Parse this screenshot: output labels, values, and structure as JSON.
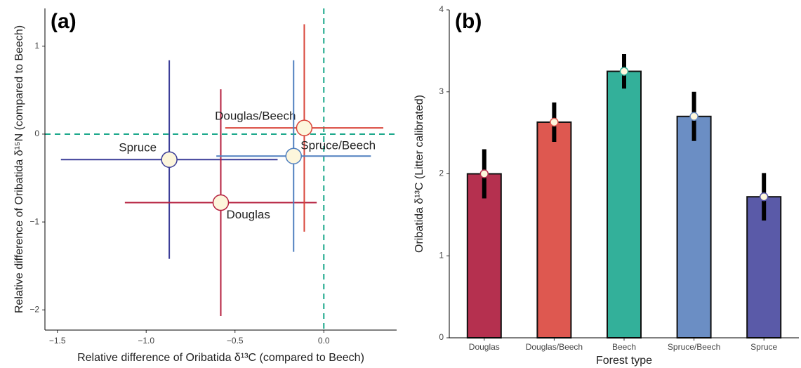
{
  "chart_data": [
    {
      "type": "scatter",
      "title": "(a)",
      "x_label": "Relative difference of Oribatida δ¹³C (compared to Beech)",
      "y_label": "Relative difference of Oribatida δ¹⁵N (compared to Beech)",
      "xlim": [
        -1.57,
        0.41
      ],
      "ylim": [
        -2.23,
        1.43
      ],
      "xticks": [
        {
          "value": -1.5,
          "label": "−1.5"
        },
        {
          "value": -1.0,
          "label": "−1.0"
        },
        {
          "value": -0.5,
          "label": "−0.5"
        },
        {
          "value": 0.0,
          "label": "0.0"
        }
      ],
      "yticks": [
        {
          "value": -2,
          "label": "−2"
        },
        {
          "value": -1,
          "label": "−1"
        },
        0,
        1
      ],
      "reference_lines": {
        "x": 0,
        "y": 0,
        "color": "#1aa88a"
      },
      "marker_fill": "#fdf6dc",
      "series": [
        {
          "name": "Spruce",
          "color": "#3b3d98",
          "x": [
            -0.87
          ],
          "values": [
            -0.29
          ],
          "xerr": [
            0.61
          ],
          "yerr": [
            1.13
          ]
        },
        {
          "name": "Douglas",
          "color": "#b5203f",
          "x": [
            -0.58
          ],
          "values": [
            -0.78
          ],
          "xerr": [
            0.54
          ],
          "yerr": [
            1.29
          ]
        },
        {
          "name": "Douglas/Beech",
          "color": "#d9463b",
          "x": [
            -0.11
          ],
          "values": [
            0.07
          ],
          "xerr": [
            0.445
          ],
          "yerr": [
            1.18
          ]
        },
        {
          "name": "Spruce/Beech",
          "color": "#4f7fbf",
          "x": [
            -0.17
          ],
          "values": [
            -0.25
          ],
          "xerr": [
            0.435
          ],
          "yerr": [
            1.09
          ]
        }
      ]
    },
    {
      "type": "bar",
      "title": "(b)",
      "x_label": "Forest type",
      "y_label": "Oribatida δ¹³C (Litter calibrated)",
      "categories": [
        "Douglas",
        "Douglas/Beech",
        "Beech",
        "Spruce/Beech",
        "Spruce"
      ],
      "values": [
        2.0,
        2.63,
        3.25,
        2.7,
        1.72
      ],
      "errors": [
        0.3,
        0.24,
        0.21,
        0.3,
        0.29
      ],
      "colors": [
        "#b5304f",
        "#de5850",
        "#33b09a",
        "#6b8ec4",
        "#5a5aa8"
      ],
      "ylim": [
        0,
        4
      ],
      "yticks": [
        0,
        1,
        2,
        3,
        4
      ]
    }
  ]
}
